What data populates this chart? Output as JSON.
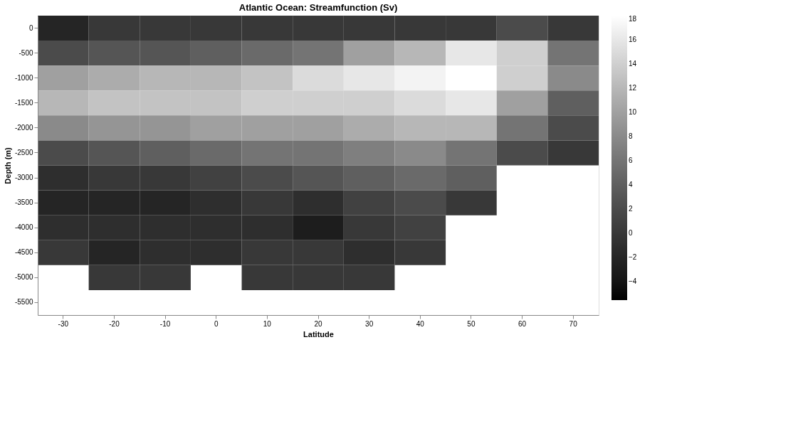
{
  "chart_data": {
    "type": "heatmap",
    "title": "Atlantic Ocean: Streamfunction (Sv)",
    "xlabel": "Latitude",
    "ylabel": "Depth (m)",
    "categories": [
      "-30",
      "-20",
      "-10",
      "0",
      "10",
      "20",
      "30",
      "40",
      "50",
      "60",
      "70"
    ],
    "y_categories": [
      "0",
      "-500",
      "-1000",
      "-1500",
      "-2000",
      "-2500",
      "-3000",
      "-3500",
      "-4000",
      "-4500",
      "-5000",
      "-5500"
    ],
    "cells": [
      [
        -2,
        0,
        0,
        0,
        0,
        0,
        0,
        0,
        0,
        2,
        0
      ],
      [
        2,
        3,
        3,
        4,
        5,
        6,
        10,
        12,
        16,
        14,
        6
      ],
      [
        10,
        11,
        12,
        12,
        13,
        15,
        16,
        17,
        18,
        14,
        8
      ],
      [
        12,
        13,
        13,
        13,
        14,
        14,
        14,
        15,
        16,
        10,
        4
      ],
      [
        8,
        9,
        9,
        10,
        10,
        10,
        11,
        12,
        12,
        6,
        2
      ],
      [
        2,
        3,
        4,
        5,
        6,
        6,
        7,
        8,
        6,
        2,
        0
      ],
      [
        -1,
        0,
        0,
        1,
        2,
        3,
        4,
        5,
        4,
        null,
        null
      ],
      [
        -2,
        -2,
        -2,
        -1,
        0,
        -1,
        1,
        2,
        0,
        null,
        null
      ],
      [
        -1,
        -1,
        -1,
        -1,
        -1,
        -3,
        0,
        1,
        null,
        null,
        null
      ],
      [
        0,
        -2,
        -1,
        -1,
        0,
        0,
        -1,
        0,
        null,
        null,
        null
      ],
      [
        null,
        0,
        0,
        null,
        0,
        0,
        0,
        null,
        null,
        null,
        null
      ],
      [
        null,
        null,
        null,
        null,
        null,
        null,
        null,
        null,
        null,
        null,
        null
      ]
    ],
    "clim": [
      -5.5,
      18
    ],
    "cticks": [
      -4,
      -2,
      0,
      2,
      4,
      6,
      8,
      10,
      12,
      14,
      16,
      18
    ],
    "grid": false
  }
}
